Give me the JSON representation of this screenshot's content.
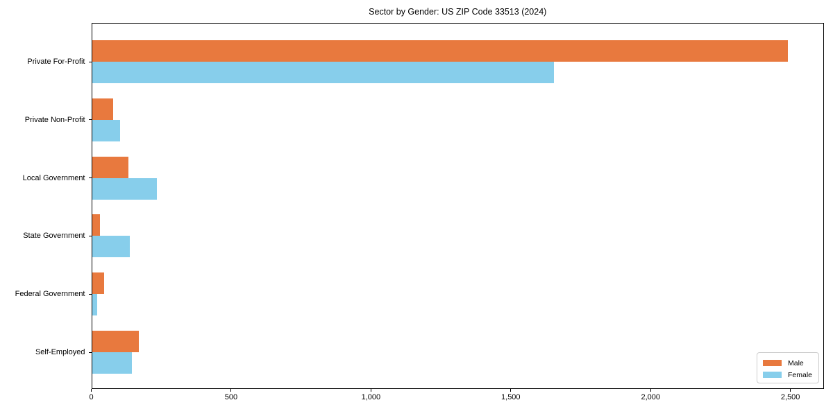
{
  "title": "Sector by Gender: US ZIP Code 33513 (2024)",
  "colors": {
    "male": "#E8793E",
    "female": "#87CEEB",
    "axis": "#000000",
    "legend_border": "#cccccc",
    "background": "#ffffff"
  },
  "chart_data": {
    "type": "bar",
    "orientation": "horizontal",
    "title": "Sector by Gender: US ZIP Code 33513 (2024)",
    "categories": [
      "Private For-Profit",
      "Private Non-Profit",
      "Local Government",
      "State Government",
      "Federal Government",
      "Self-Employed"
    ],
    "series": [
      {
        "name": "Male",
        "color": "#E8793E",
        "values": [
          2490,
          78,
          132,
          30,
          46,
          170
        ]
      },
      {
        "name": "Female",
        "color": "#87CEEB",
        "values": [
          1655,
          102,
          234,
          137,
          22,
          146
        ]
      }
    ],
    "xlabel": "",
    "ylabel": "",
    "xlim": [
      0,
      2620
    ],
    "xticks": [
      0,
      500,
      1000,
      1500,
      2000,
      2500
    ],
    "xtick_labels": [
      "0",
      "500",
      "1,000",
      "1,500",
      "2,000",
      "2,500"
    ],
    "grid": false,
    "legend": {
      "position": "lower right",
      "entries": [
        "Male",
        "Female"
      ]
    }
  }
}
